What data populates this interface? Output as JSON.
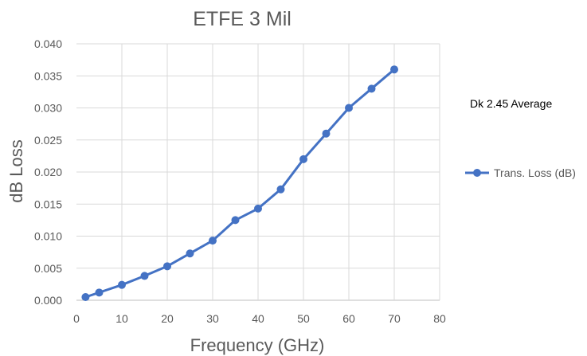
{
  "chart_data": {
    "type": "line",
    "title": "ETFE 3 Mil",
    "xlabel": "Frequency (GHz)",
    "ylabel": "dB Loss",
    "xlim": [
      0,
      80
    ],
    "ylim": [
      0,
      0.04
    ],
    "xticks": [
      "0",
      "10",
      "20",
      "30",
      "40",
      "50",
      "60",
      "70",
      "80"
    ],
    "yticks": [
      "0.000",
      "0.005",
      "0.010",
      "0.015",
      "0.020",
      "0.025",
      "0.030",
      "0.035",
      "0.040"
    ],
    "grid": true,
    "legend_position": "right",
    "annotation": "Dk 2.45 Average",
    "series": [
      {
        "name": "Trans. Loss (dB)",
        "color": "#4472c4",
        "x": [
          2,
          5,
          10,
          15,
          20,
          25,
          30,
          35,
          40,
          45,
          50,
          55,
          60,
          65,
          70
        ],
        "y": [
          0.0005,
          0.0012,
          0.0024,
          0.0038,
          0.0053,
          0.0073,
          0.0093,
          0.0125,
          0.0143,
          0.0173,
          0.022,
          0.026,
          0.03,
          0.033,
          0.036
        ]
      }
    ]
  }
}
